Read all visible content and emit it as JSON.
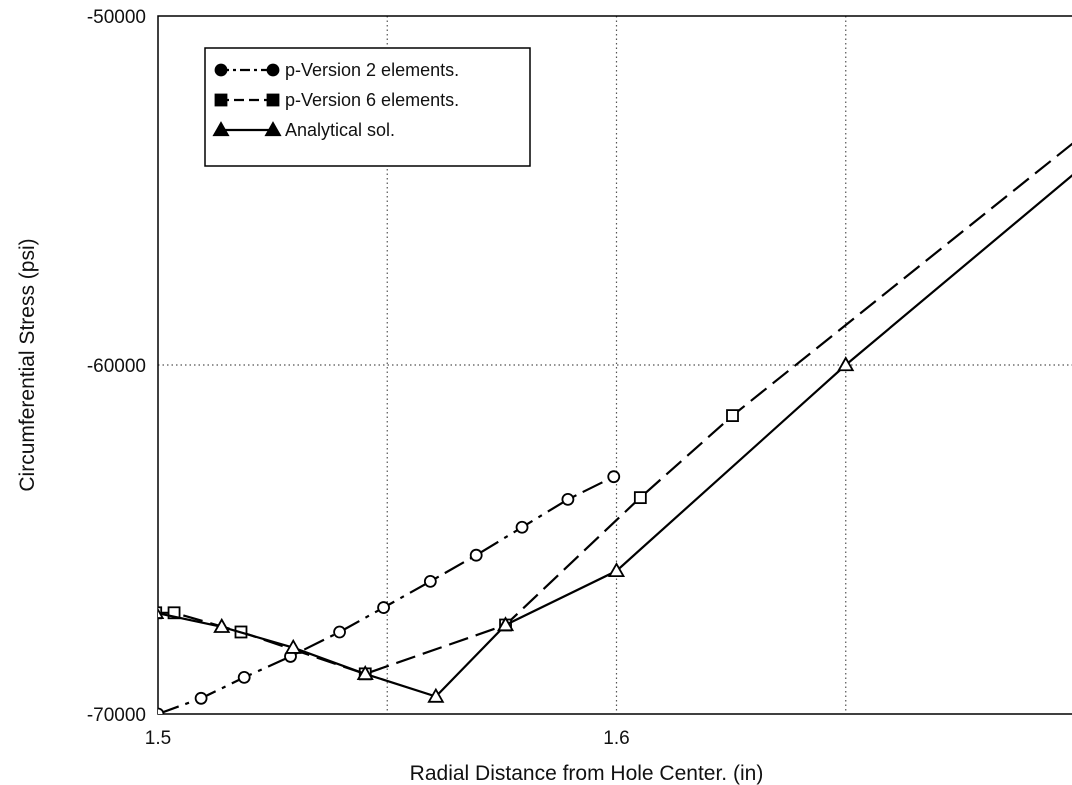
{
  "chart_data": {
    "type": "line",
    "title": "",
    "xlabel": "Radial Distance from Hole Center. (in)",
    "ylabel": "Circumferential Stress (psi)",
    "xlim": [
      1.5,
      1.7
    ],
    "ylim": [
      -70000,
      -50000
    ],
    "x_ticks": [
      1.5,
      1.55,
      1.6,
      1.65,
      1.7
    ],
    "x_tick_labels": [
      "1.5",
      "",
      "1.6",
      "",
      ""
    ],
    "y_ticks": [
      -70000,
      -60000,
      -50000
    ],
    "y_tick_labels": [
      "-70000",
      "-60000",
      "-50000"
    ],
    "grid": true,
    "legend_position": "top-left",
    "series": [
      {
        "name": "p-Version 2 elements.",
        "style": "dash-dot",
        "marker": "circle",
        "color": "#000000",
        "x": [
          1.5,
          1.5094,
          1.5188,
          1.5289,
          1.5396,
          1.5492,
          1.5594,
          1.5694,
          1.5794,
          1.5894,
          1.5994
        ],
        "y": [
          -70000,
          -69550,
          -68950,
          -68350,
          -67650,
          -66950,
          -66200,
          -65450,
          -64650,
          -63850,
          -63200
        ]
      },
      {
        "name": "p-Version 6 elements.",
        "style": "dashed",
        "marker": "square",
        "color": "#000000",
        "x": [
          1.4995,
          1.5035,
          1.5181,
          1.5452,
          1.5758,
          1.6052,
          1.6253,
          1.7
        ],
        "y": [
          -67100,
          -67100,
          -67650,
          -68850,
          -67450,
          -63800,
          -61450,
          -53600
        ]
      },
      {
        "name": "Analytical sol.",
        "style": "solid",
        "marker": "triangle",
        "color": "#000000",
        "x": [
          1.4995,
          1.5139,
          1.5295,
          1.5452,
          1.5606,
          1.5758,
          1.6,
          1.65,
          1.7
        ],
        "y": [
          -67100,
          -67500,
          -68100,
          -68850,
          -69500,
          -67450,
          -65900,
          -60000,
          -54500
        ]
      }
    ]
  }
}
